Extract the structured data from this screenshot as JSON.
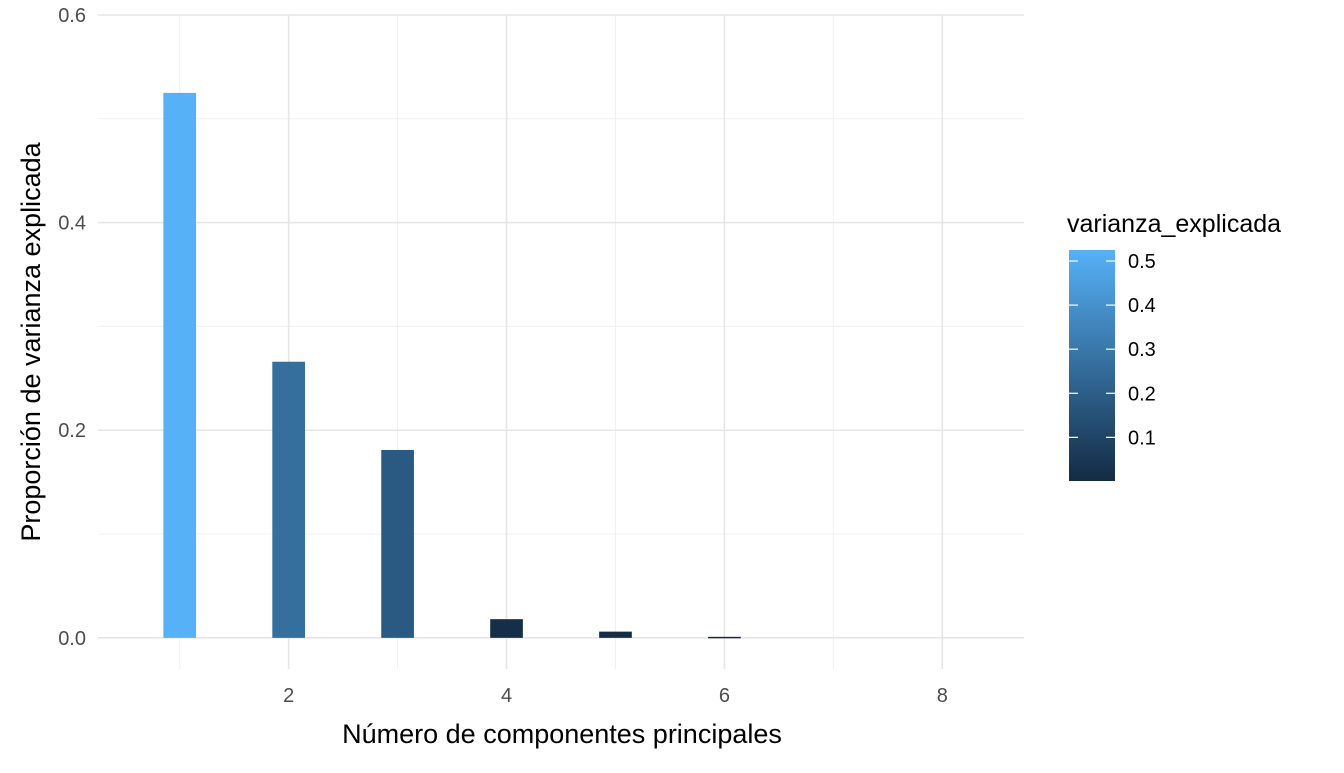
{
  "chart_data": {
    "type": "bar",
    "x": [
      1,
      2,
      3,
      4,
      5,
      6,
      7,
      8
    ],
    "values": [
      0.525,
      0.266,
      0.181,
      0.018,
      0.006,
      0.001,
      0.0,
      0.0
    ],
    "xlabel": "Número de componentes principales",
    "ylabel": "Proporción de varianza explicada",
    "xlim": [
      0.25,
      8.75
    ],
    "ylim": [
      -0.03,
      0.6
    ],
    "x_ticks": [
      2,
      4,
      6,
      8
    ],
    "x_tick_labels": [
      "2",
      "4",
      "6",
      "8"
    ],
    "y_ticks": [
      0.0,
      0.2,
      0.4,
      0.6
    ],
    "y_tick_labels": [
      "0.0",
      "0.2",
      "0.4",
      "0.6"
    ],
    "grid": true,
    "legend": {
      "title": "varianza_explicada",
      "placement": "right",
      "type": "colorbar",
      "range": [
        0.001,
        0.525
      ],
      "ticks": [
        0.1,
        0.2,
        0.3,
        0.4,
        0.5
      ],
      "tick_labels": [
        "0.1",
        "0.2",
        "0.3",
        "0.4",
        "0.5"
      ],
      "color_low": "#132B43",
      "color_high": "#56B1F7"
    }
  }
}
